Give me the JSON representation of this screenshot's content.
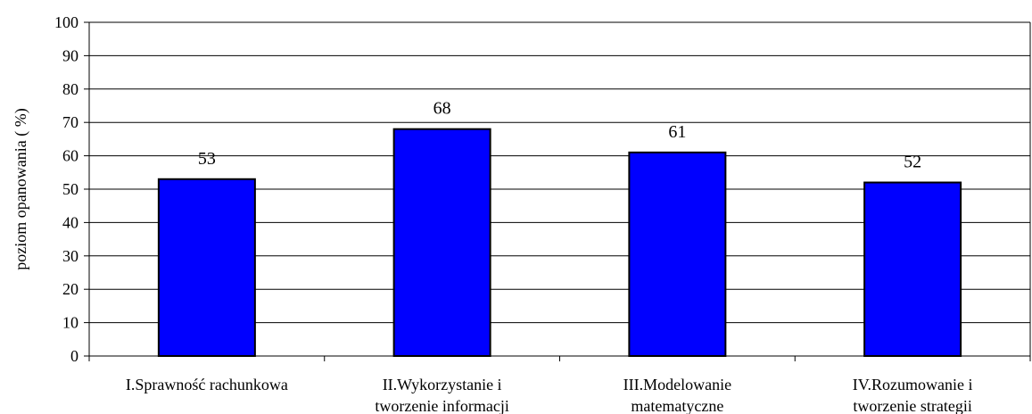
{
  "chart_data": {
    "type": "bar",
    "ylabel": "poziom opanowania ( %)",
    "xlabel": "",
    "ylim": [
      0,
      100
    ],
    "ytick_step": 10,
    "grid": true,
    "bar_color": "#0000FF",
    "categories": [
      [
        "I.Sprawność rachunkowa"
      ],
      [
        "II.Wykorzystanie i",
        "tworzenie informacji"
      ],
      [
        "III.Modelowanie",
        "matematyczne"
      ],
      [
        "IV.Rozumowanie i",
        "tworzenie strategii"
      ]
    ],
    "values": [
      53,
      68,
      61,
      52
    ],
    "data_labels": [
      "53",
      "68",
      "61",
      "52"
    ]
  }
}
